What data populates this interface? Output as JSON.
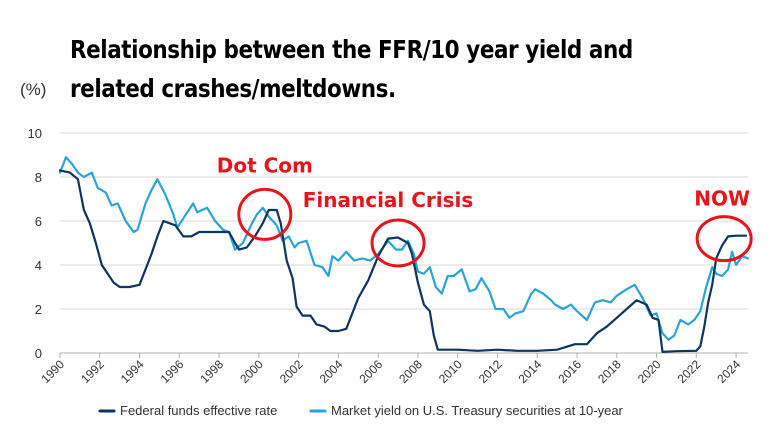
{
  "title_lines": [
    "Relationship between the FFR/10 year yield and",
    "related crashes/meltdowns."
  ],
  "unit_label": "(%)",
  "annotations": [
    {
      "id": "dotcom",
      "text": "Dot Com",
      "x": 2000.3,
      "y": 6.3
    },
    {
      "id": "financial-crisis",
      "text": "Financial Crisis",
      "x": 2007.0,
      "y": 5.0
    },
    {
      "id": "now",
      "text": "NOW",
      "x": 2023.4,
      "y": 5.2
    }
  ],
  "colors": {
    "ffr": "#0f3460",
    "ten_year": "#2aa3d8",
    "annotation": "#e8141b",
    "grid": "#d9d9d9"
  },
  "chart_data": {
    "type": "line",
    "title": "Relationship between the FFR/10 year yield and related crashes/meltdowns.",
    "ylabel": "(%)",
    "ylim": [
      0,
      10
    ],
    "xlim": [
      1990,
      2024.6
    ],
    "yticks": [
      0,
      2,
      4,
      6,
      8,
      10
    ],
    "xticks": [
      "1990",
      "1992",
      "1994",
      "1996",
      "1998",
      "2000",
      "2002",
      "2004",
      "2006",
      "2008",
      "2010",
      "2012",
      "2014",
      "2016",
      "2018",
      "2020",
      "2022",
      "2024"
    ],
    "grid": "horizontal",
    "legend_position": "bottom",
    "series": [
      {
        "name": "Federal funds effective rate",
        "color": "#0f3460",
        "x": [
          1990.0,
          1990.5,
          1990.9,
          1991.2,
          1991.5,
          1991.8,
          1992.1,
          1992.4,
          1992.7,
          1993.0,
          1993.5,
          1994.0,
          1994.3,
          1994.6,
          1994.9,
          1995.2,
          1995.5,
          1995.8,
          1996.2,
          1996.6,
          1997.0,
          1997.5,
          1998.0,
          1998.5,
          1998.8,
          1999.0,
          1999.4,
          1999.8,
          2000.2,
          2000.5,
          2000.9,
          2001.1,
          2001.4,
          2001.7,
          2001.9,
          2002.2,
          2002.6,
          2002.9,
          2003.3,
          2003.6,
          2004.0,
          2004.4,
          2004.7,
          2005.0,
          2005.5,
          2006.0,
          2006.5,
          2007.0,
          2007.5,
          2007.7,
          2008.0,
          2008.3,
          2008.6,
          2008.8,
          2009.0,
          2010.0,
          2011.0,
          2012.0,
          2013.0,
          2014.0,
          2015.0,
          2015.9,
          2016.5,
          2017.0,
          2017.5,
          2018.0,
          2018.5,
          2019.0,
          2019.5,
          2019.8,
          2020.1,
          2020.3,
          2021.0,
          2022.0,
          2022.2,
          2022.4,
          2022.6,
          2022.8,
          2023.0,
          2023.3,
          2023.6,
          2024.0,
          2024.5
        ],
        "values": [
          8.3,
          8.2,
          7.9,
          6.5,
          5.9,
          5.0,
          4.0,
          3.6,
          3.2,
          3.0,
          3.0,
          3.1,
          3.8,
          4.5,
          5.3,
          6.0,
          5.9,
          5.8,
          5.3,
          5.3,
          5.5,
          5.5,
          5.5,
          5.5,
          5.0,
          4.7,
          4.8,
          5.3,
          5.9,
          6.5,
          6.5,
          5.9,
          4.2,
          3.4,
          2.1,
          1.7,
          1.7,
          1.3,
          1.2,
          1.0,
          1.0,
          1.1,
          1.8,
          2.5,
          3.3,
          4.4,
          5.2,
          5.25,
          5.0,
          4.5,
          3.2,
          2.2,
          1.9,
          0.8,
          0.15,
          0.15,
          0.1,
          0.15,
          0.1,
          0.1,
          0.15,
          0.4,
          0.4,
          0.9,
          1.2,
          1.6,
          2.0,
          2.4,
          2.2,
          1.6,
          1.5,
          0.05,
          0.08,
          0.1,
          0.3,
          1.2,
          2.3,
          3.1,
          4.3,
          4.9,
          5.3,
          5.33,
          5.33
        ]
      },
      {
        "name": "Market yield on U.S. Treasury securities at 10-year",
        "color": "#2aa3d8",
        "x": [
          1990.0,
          1990.3,
          1990.6,
          1990.9,
          1991.2,
          1991.6,
          1991.9,
          1992.3,
          1992.6,
          1992.9,
          1993.3,
          1993.7,
          1993.9,
          1994.3,
          1994.6,
          1994.9,
          1995.3,
          1995.7,
          1995.9,
          1996.4,
          1996.7,
          1996.9,
          1997.4,
          1997.8,
          1998.2,
          1998.5,
          1998.8,
          1999.2,
          1999.6,
          1999.9,
          2000.2,
          2000.5,
          2000.9,
          2001.2,
          2001.5,
          2001.8,
          2002.0,
          2002.4,
          2002.8,
          2003.2,
          2003.5,
          2003.7,
          2004.0,
          2004.4,
          2004.8,
          2005.2,
          2005.6,
          2006.0,
          2006.5,
          2006.9,
          2007.2,
          2007.5,
          2007.8,
          2008.0,
          2008.3,
          2008.6,
          2008.9,
          2009.2,
          2009.5,
          2009.8,
          2010.2,
          2010.6,
          2010.9,
          2011.2,
          2011.6,
          2011.9,
          2012.3,
          2012.6,
          2012.9,
          2013.3,
          2013.7,
          2013.9,
          2014.3,
          2014.7,
          2014.9,
          2015.3,
          2015.7,
          2016.0,
          2016.5,
          2016.9,
          2017.3,
          2017.7,
          2018.0,
          2018.5,
          2018.9,
          2019.3,
          2019.7,
          2020.0,
          2020.3,
          2020.6,
          2020.9,
          2021.2,
          2021.6,
          2021.9,
          2022.2,
          2022.5,
          2022.8,
          2023.0,
          2023.3,
          2023.6,
          2023.8,
          2024.0,
          2024.3,
          2024.6
        ],
        "values": [
          8.2,
          8.9,
          8.6,
          8.2,
          8.0,
          8.2,
          7.5,
          7.3,
          6.7,
          6.8,
          6.0,
          5.5,
          5.6,
          6.8,
          7.4,
          7.9,
          7.2,
          6.3,
          5.7,
          6.4,
          6.8,
          6.4,
          6.6,
          6.0,
          5.6,
          5.5,
          4.7,
          5.0,
          5.8,
          6.3,
          6.6,
          6.2,
          5.8,
          5.1,
          5.3,
          4.8,
          5.0,
          5.1,
          4.0,
          3.9,
          3.5,
          4.4,
          4.2,
          4.6,
          4.2,
          4.3,
          4.2,
          4.5,
          5.1,
          4.7,
          4.7,
          5.1,
          4.5,
          3.7,
          3.6,
          3.9,
          3.0,
          2.7,
          3.5,
          3.5,
          3.8,
          2.8,
          2.9,
          3.4,
          2.8,
          2.0,
          2.0,
          1.6,
          1.8,
          1.9,
          2.7,
          2.9,
          2.7,
          2.4,
          2.2,
          2.0,
          2.2,
          1.9,
          1.5,
          2.3,
          2.4,
          2.3,
          2.6,
          2.9,
          3.1,
          2.5,
          1.7,
          1.8,
          0.9,
          0.6,
          0.8,
          1.5,
          1.3,
          1.5,
          1.9,
          3.0,
          3.9,
          3.6,
          3.5,
          3.8,
          4.6,
          4.0,
          4.4,
          4.3
        ]
      }
    ]
  }
}
